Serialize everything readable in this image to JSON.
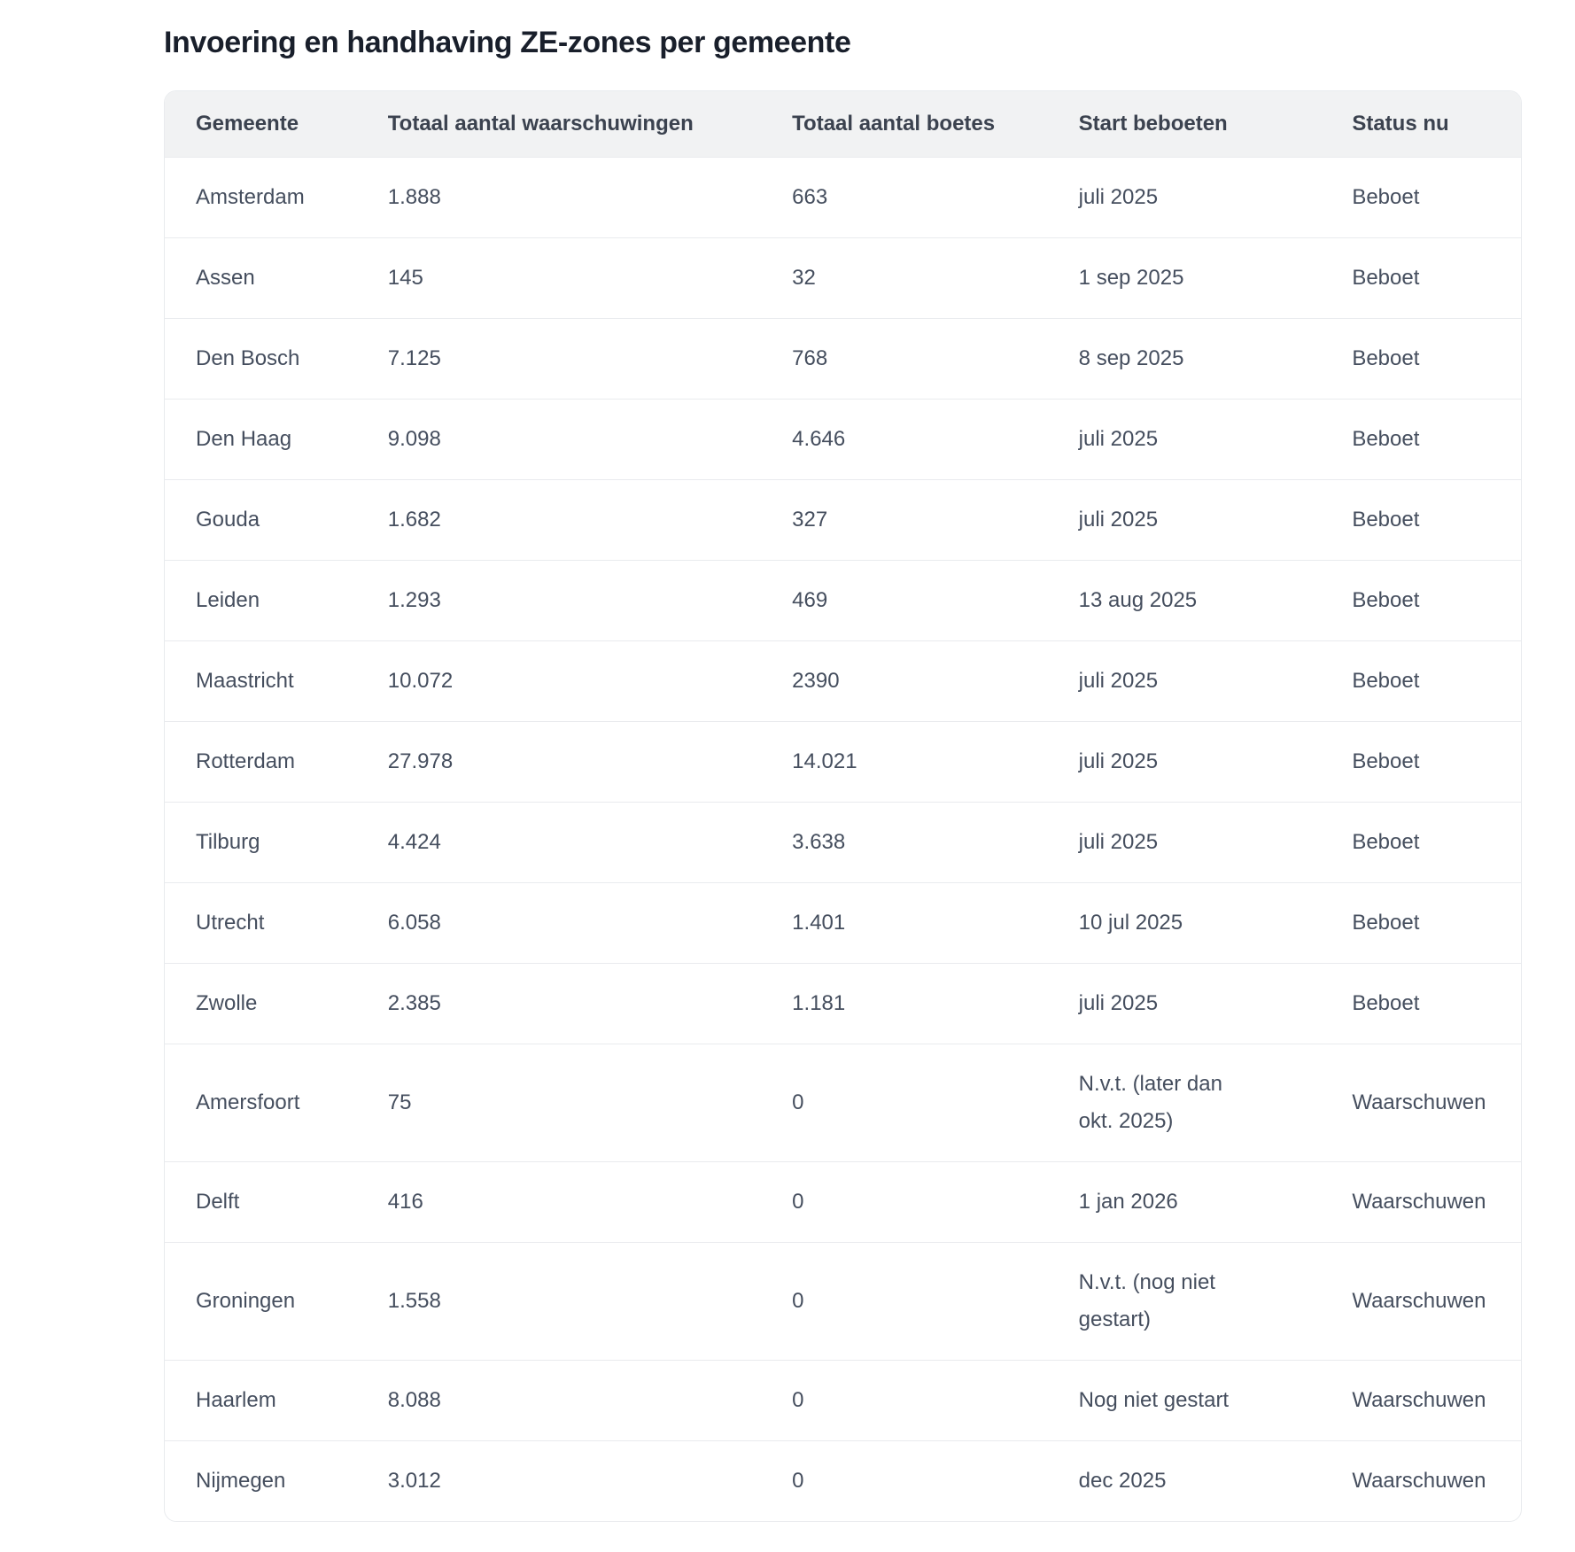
{
  "title": "Invoering en handhaving ZE-zones per gemeente",
  "chart_data": {
    "type": "table",
    "title": "Invoering en handhaving ZE-zones per gemeente",
    "columns": [
      "Gemeente",
      "Totaal aantal waarschuwingen",
      "Totaal aantal boetes",
      "Start beboeten",
      "Status nu"
    ],
    "fields": [
      "gemeente",
      "waarschuwingen",
      "boetes",
      "start_beboeten",
      "status"
    ],
    "rows": [
      {
        "gemeente": "Amsterdam",
        "waarschuwingen": "1.888",
        "boetes": "663",
        "start_beboeten": "juli 2025",
        "status": "Beboet"
      },
      {
        "gemeente": "Assen",
        "waarschuwingen": "145",
        "boetes": "32",
        "start_beboeten": "1 sep 2025",
        "status": "Beboet"
      },
      {
        "gemeente": "Den Bosch",
        "waarschuwingen": "7.125",
        "boetes": "768",
        "start_beboeten": "8 sep 2025",
        "status": "Beboet"
      },
      {
        "gemeente": "Den Haag",
        "waarschuwingen": "9.098",
        "boetes": "4.646",
        "start_beboeten": "juli 2025",
        "status": "Beboet"
      },
      {
        "gemeente": "Gouda",
        "waarschuwingen": "1.682",
        "boetes": "327",
        "start_beboeten": "juli 2025",
        "status": "Beboet"
      },
      {
        "gemeente": "Leiden",
        "waarschuwingen": "1.293",
        "boetes": "469",
        "start_beboeten": "13 aug 2025",
        "status": "Beboet"
      },
      {
        "gemeente": "Maastricht",
        "waarschuwingen": "10.072",
        "boetes": "2390",
        "start_beboeten": "juli 2025",
        "status": "Beboet"
      },
      {
        "gemeente": "Rotterdam",
        "waarschuwingen": "27.978",
        "boetes": "14.021",
        "start_beboeten": "juli 2025",
        "status": "Beboet"
      },
      {
        "gemeente": "Tilburg",
        "waarschuwingen": "4.424",
        "boetes": "3.638",
        "start_beboeten": "juli 2025",
        "status": "Beboet"
      },
      {
        "gemeente": "Utrecht",
        "waarschuwingen": "6.058",
        "boetes": "1.401",
        "start_beboeten": "10 jul 2025",
        "status": "Beboet"
      },
      {
        "gemeente": "Zwolle",
        "waarschuwingen": "2.385",
        "boetes": "1.181",
        "start_beboeten": "juli 2025",
        "status": "Beboet"
      },
      {
        "gemeente": "Amersfoort",
        "waarschuwingen": "75",
        "boetes": "0",
        "start_beboeten": "N.v.t. (later dan\nokt. 2025)",
        "status": "Waarschuwen"
      },
      {
        "gemeente": "Delft",
        "waarschuwingen": "416",
        "boetes": "0",
        "start_beboeten": "1 jan 2026",
        "status": "Waarschuwen"
      },
      {
        "gemeente": "Groningen",
        "waarschuwingen": "1.558",
        "boetes": "0",
        "start_beboeten": "N.v.t. (nog niet\ngestart)",
        "status": "Waarschuwen"
      },
      {
        "gemeente": "Haarlem",
        "waarschuwingen": "8.088",
        "boetes": "0",
        "start_beboeten": "Nog niet gestart",
        "status": "Waarschuwen"
      },
      {
        "gemeente": "Nijmegen",
        "waarschuwingen": "3.012",
        "boetes": "0",
        "start_beboeten": "dec 2025",
        "status": "Waarschuwen"
      }
    ]
  },
  "theme": {
    "title_color": "#191f2b",
    "header_bg": "#f1f2f3",
    "header_text": "#3b424f",
    "cell_text": "#454e5e",
    "border": "#e9ebee",
    "page_bg": "#ffffff"
  }
}
